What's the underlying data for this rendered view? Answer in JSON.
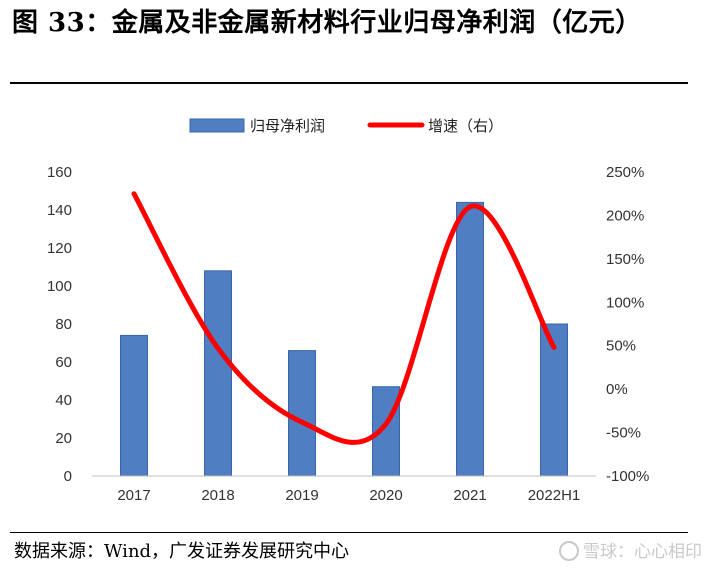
{
  "header": {
    "title": "图 33：金属及非金属新材料行业归母净利润（亿元）"
  },
  "footer": {
    "source": "数据来源：Wind，广发证券发展研究中心",
    "watermark": "雪球：心心相印"
  },
  "colors": {
    "bar": "#4f7ec3",
    "bar_edge": "#3a66a8",
    "line": "#ff0000",
    "axis": "#bfbfbf"
  },
  "chart_data": {
    "type": "bar",
    "categories": [
      "2017",
      "2018",
      "2019",
      "2020",
      "2021",
      "2022H1"
    ],
    "series": [
      {
        "name": "归母净利润",
        "type": "bar",
        "axis": "left",
        "values": [
          74,
          108,
          66,
          47,
          144,
          80
        ]
      },
      {
        "name": "增速（右）",
        "type": "line",
        "axis": "right",
        "smooth": true,
        "values": [
          225,
          47,
          -38,
          -40,
          210,
          48
        ]
      }
    ],
    "ylim": [
      0,
      160
    ],
    "yticks": [
      0,
      20,
      40,
      60,
      80,
      100,
      120,
      140,
      160
    ],
    "y2lim": [
      -100,
      250
    ],
    "y2ticks": [
      "-100%",
      "-50%",
      "0%",
      "50%",
      "100%",
      "150%",
      "200%",
      "250%"
    ],
    "legend_position": "top-center",
    "grid": false
  }
}
